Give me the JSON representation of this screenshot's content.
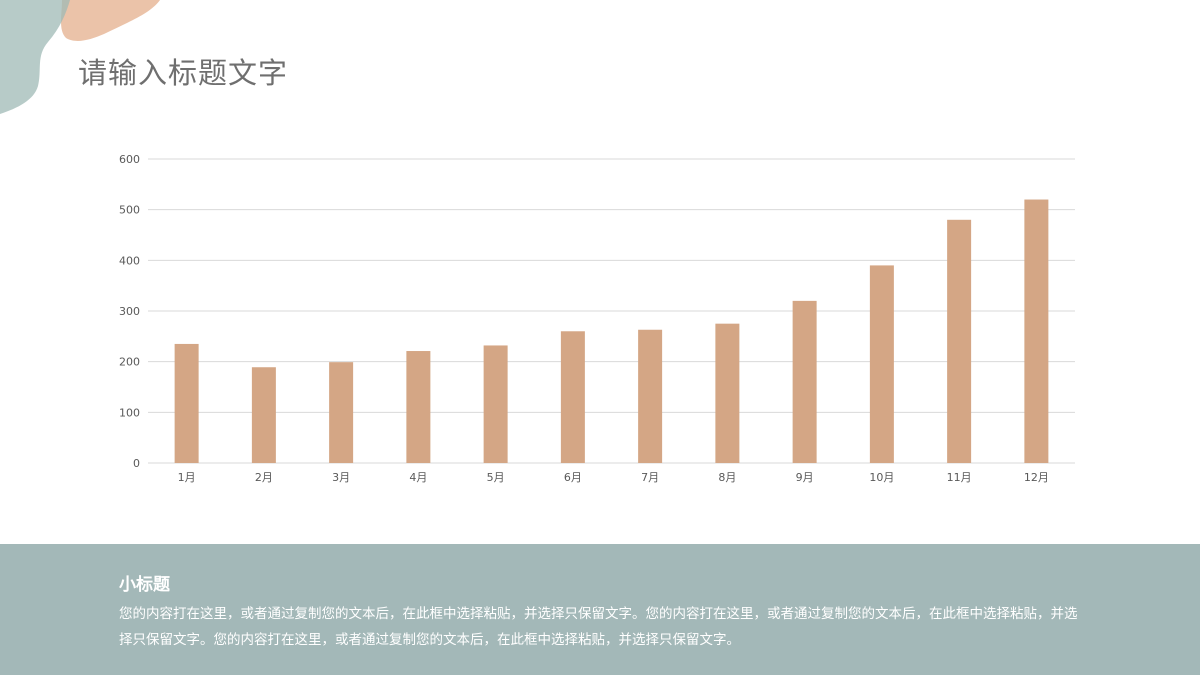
{
  "header": {
    "title": "请输入标题文字"
  },
  "colors": {
    "bar": "#d4a685",
    "grid": "#d9d9d9",
    "tick_text": "#595959",
    "footer_bg": "#a3b8b8",
    "decor_peach": "#e8b99a",
    "decor_teal": "#9fb9b5"
  },
  "chart_data": {
    "type": "bar",
    "categories": [
      "1月",
      "2月",
      "3月",
      "4月",
      "5月",
      "6月",
      "7月",
      "8月",
      "9月",
      "10月",
      "11月",
      "12月"
    ],
    "values": [
      235,
      189,
      199,
      221,
      232,
      260,
      263,
      275,
      320,
      390,
      480,
      520
    ],
    "title": "",
    "xlabel": "",
    "ylabel": "",
    "ylim": [
      0,
      600
    ],
    "yticks": [
      0,
      100,
      200,
      300,
      400,
      500,
      600
    ],
    "grid": true,
    "legend": "none"
  },
  "footer": {
    "subtitle": "小标题",
    "body": "您的内容打在这里，或者通过复制您的文本后，在此框中选择粘贴，并选择只保留文字。您的内容打在这里，或者通过复制您的文本后，在此框中选择粘贴，并选择只保留文字。您的内容打在这里，或者通过复制您的文本后，在此框中选择粘贴，并选择只保留文字。"
  }
}
